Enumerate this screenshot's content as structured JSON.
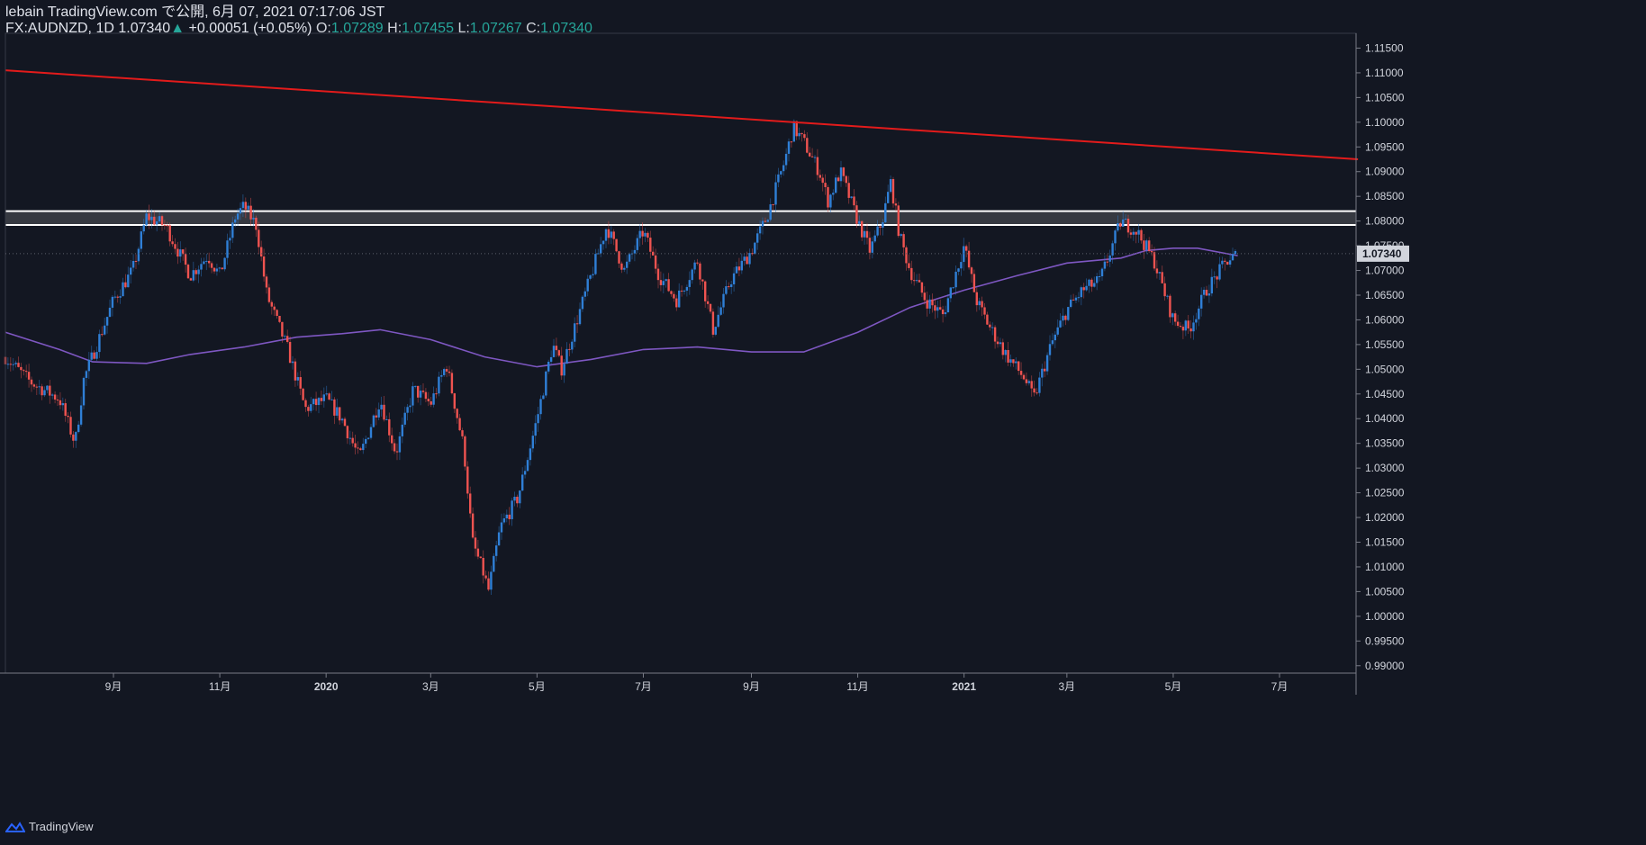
{
  "header": {
    "published": "lebain TradingView.com で公開, 6月 07, 2021 07:17:06 JST",
    "symbol": "FX:AUDNZD, 1D",
    "last": "1.07340",
    "change": "+0.00051 (+0.05%)",
    "o_label": "O:",
    "o": "1.07289",
    "h_label": "H:",
    "h": "1.07455",
    "l_label": "L:",
    "l": "1.07267",
    "c_label": "C:",
    "c": "1.07340"
  },
  "footer": {
    "brand": "TradingView"
  },
  "colors": {
    "background": "#131722",
    "up_candle": "#2f7fd6",
    "down_candle": "#ef5350",
    "trendline": "#e31b1b",
    "moving_average": "#7e57c2",
    "zone_fill": "#3d3f46",
    "zone_border": "#ffffff",
    "price_tag": "#d1d4dc"
  },
  "chart_data": {
    "type": "candlestick",
    "symbol": "FX:AUDNZD",
    "interval": "1D",
    "x_ticks": [
      "9月",
      "11月",
      "2020",
      "3月",
      "5月",
      "7月",
      "9月",
      "11月",
      "2021",
      "3月",
      "5月",
      "7月"
    ],
    "y_ticks": [
      "1.11500",
      "1.11000",
      "1.10500",
      "1.10000",
      "1.09500",
      "1.09000",
      "1.08500",
      "1.08000",
      "1.07500",
      "1.07000",
      "1.06500",
      "1.06000",
      "1.05500",
      "1.05000",
      "1.04500",
      "1.04000",
      "1.03500",
      "1.03000",
      "1.02500",
      "1.02000",
      "1.01500",
      "1.01000",
      "1.00500",
      "1.00000",
      "0.99500",
      "0.99000"
    ],
    "ylim": [
      0.9885,
      1.118
    ],
    "current_price": "1.07340",
    "resistance_zone": [
      1.0792,
      1.082
    ],
    "trendline": {
      "start": {
        "date": "2019-07-01",
        "value": 1.1105
      },
      "end": {
        "date": "2021-08-15",
        "value": 1.0925
      }
    },
    "close_path": [
      [
        "2019-07-01",
        1.0525
      ],
      [
        "2019-07-15",
        1.0475
      ],
      [
        "2019-08-01",
        1.044
      ],
      [
        "2019-08-10",
        1.035
      ],
      [
        "2019-08-15",
        1.048
      ],
      [
        "2019-09-01",
        1.064
      ],
      [
        "2019-09-12",
        1.07
      ],
      [
        "2019-09-20",
        1.081
      ],
      [
        "2019-10-01",
        1.079
      ],
      [
        "2019-10-15",
        1.069
      ],
      [
        "2019-10-25",
        1.073
      ],
      [
        "2019-11-01",
        1.069
      ],
      [
        "2019-11-10",
        1.081
      ],
      [
        "2019-11-15",
        1.083
      ],
      [
        "2019-11-22",
        1.079
      ],
      [
        "2019-11-28",
        1.065
      ],
      [
        "2019-12-10",
        1.054
      ],
      [
        "2019-12-20",
        1.042
      ],
      [
        "2020-01-01",
        1.044
      ],
      [
        "2020-01-10",
        1.04
      ],
      [
        "2020-01-20",
        1.032
      ],
      [
        "2020-02-01",
        1.044
      ],
      [
        "2020-02-10",
        1.033
      ],
      [
        "2020-02-20",
        1.046
      ],
      [
        "2020-03-01",
        1.043
      ],
      [
        "2020-03-10",
        1.051
      ],
      [
        "2020-03-20",
        1.034
      ],
      [
        "2020-03-25",
        1.015
      ],
      [
        "2020-04-01",
        1.008
      ],
      [
        "2020-04-03",
        1.005
      ],
      [
        "2020-04-10",
        1.018
      ],
      [
        "2020-04-20",
        1.024
      ],
      [
        "2020-05-01",
        1.04
      ],
      [
        "2020-05-10",
        1.055
      ],
      [
        "2020-05-15",
        1.05
      ],
      [
        "2020-06-01",
        1.069
      ],
      [
        "2020-06-10",
        1.079
      ],
      [
        "2020-06-20",
        1.07
      ],
      [
        "2020-07-01",
        1.078
      ],
      [
        "2020-07-10",
        1.069
      ],
      [
        "2020-07-20",
        1.064
      ],
      [
        "2020-08-01",
        1.072
      ],
      [
        "2020-08-10",
        1.058
      ],
      [
        "2020-08-20",
        1.068
      ],
      [
        "2020-09-01",
        1.074
      ],
      [
        "2020-09-10",
        1.081
      ],
      [
        "2020-09-20",
        1.092
      ],
      [
        "2020-09-25",
        1.099
      ],
      [
        "2020-10-01",
        1.096
      ],
      [
        "2020-10-10",
        1.09
      ],
      [
        "2020-10-15",
        1.084
      ],
      [
        "2020-10-22",
        1.09
      ],
      [
        "2020-11-01",
        1.08
      ],
      [
        "2020-11-08",
        1.074
      ],
      [
        "2020-11-15",
        1.08
      ],
      [
        "2020-11-20",
        1.088
      ],
      [
        "2020-11-25",
        1.077
      ],
      [
        "2020-12-01",
        1.07
      ],
      [
        "2020-12-10",
        1.064
      ],
      [
        "2020-12-20",
        1.061
      ],
      [
        "2021-01-01",
        1.075
      ],
      [
        "2021-01-08",
        1.064
      ],
      [
        "2021-01-15",
        1.059
      ],
      [
        "2021-01-25",
        1.053
      ],
      [
        "2021-02-05",
        1.048
      ],
      [
        "2021-02-10",
        1.044
      ],
      [
        "2021-02-20",
        1.055
      ],
      [
        "2021-03-01",
        1.062
      ],
      [
        "2021-03-10",
        1.066
      ],
      [
        "2021-03-20",
        1.068
      ],
      [
        "2021-04-01",
        1.08
      ],
      [
        "2021-04-10",
        1.078
      ],
      [
        "2021-04-20",
        1.072
      ],
      [
        "2021-05-01",
        1.06
      ],
      [
        "2021-05-10",
        1.058
      ],
      [
        "2021-05-20",
        1.066
      ],
      [
        "2021-06-01",
        1.072
      ],
      [
        "2021-06-07",
        1.0734
      ]
    ],
    "moving_average_path": [
      [
        "2019-07-01",
        1.0575
      ],
      [
        "2019-08-01",
        1.054
      ],
      [
        "2019-08-20",
        1.0515
      ],
      [
        "2019-09-20",
        1.0512
      ],
      [
        "2019-10-15",
        1.053
      ],
      [
        "2019-11-15",
        1.0545
      ],
      [
        "2019-12-15",
        1.0565
      ],
      [
        "2020-01-10",
        1.0572
      ],
      [
        "2020-02-01",
        1.058
      ],
      [
        "2020-03-01",
        1.056
      ],
      [
        "2020-04-01",
        1.0525
      ],
      [
        "2020-05-01",
        1.0505
      ],
      [
        "2020-06-01",
        1.052
      ],
      [
        "2020-07-01",
        1.054
      ],
      [
        "2020-08-01",
        1.0545
      ],
      [
        "2020-09-01",
        1.0535
      ],
      [
        "2020-10-01",
        1.0535
      ],
      [
        "2020-11-01",
        1.0575
      ],
      [
        "2020-12-01",
        1.0625
      ],
      [
        "2021-01-01",
        1.066
      ],
      [
        "2021-02-01",
        1.069
      ],
      [
        "2021-03-01",
        1.0715
      ],
      [
        "2021-04-01",
        1.0725
      ],
      [
        "2021-04-15",
        1.074
      ],
      [
        "2021-05-01",
        1.0745
      ],
      [
        "2021-05-15",
        1.0745
      ],
      [
        "2021-06-07",
        1.073
      ]
    ]
  }
}
